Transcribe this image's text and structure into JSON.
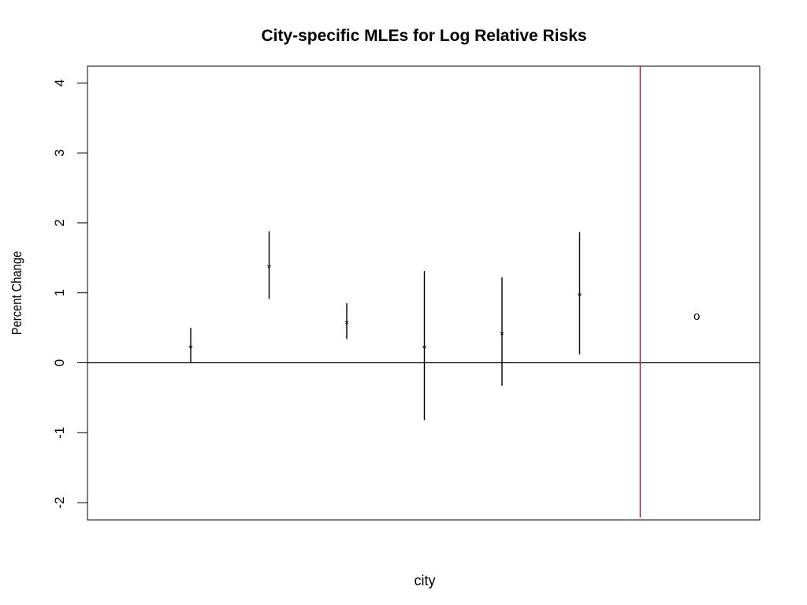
{
  "chart_data": {
    "type": "scatter",
    "title": "City-specific MLEs for Log Relative Risks",
    "xlabel": "city",
    "ylabel": "Percent Change",
    "ylim": [
      -2.25,
      4.25
    ],
    "xlim": [
      0.5,
      9.2
    ],
    "y_ticks": [
      -2,
      -1,
      0,
      1,
      2,
      3,
      4
    ],
    "grid": false,
    "estimates": [
      {
        "x": 1.85,
        "estimate": 0.22,
        "lower": 0.0,
        "upper": 0.5,
        "symbol": "*"
      },
      {
        "x": 2.86,
        "estimate": 1.37,
        "lower": 0.91,
        "upper": 1.88,
        "symbol": "*"
      },
      {
        "x": 3.86,
        "estimate": 0.57,
        "lower": 0.34,
        "upper": 0.85,
        "symbol": "*"
      },
      {
        "x": 4.86,
        "estimate": 0.22,
        "lower": -0.82,
        "upper": 1.31,
        "symbol": "*"
      },
      {
        "x": 5.86,
        "estimate": 0.41,
        "lower": -0.33,
        "upper": 1.22,
        "symbol": "*"
      },
      {
        "x": 6.86,
        "estimate": 0.97,
        "lower": 0.12,
        "upper": 1.87,
        "symbol": "*"
      }
    ],
    "pooled": {
      "x": 8.37,
      "estimate": 0.66,
      "symbol": "o"
    },
    "reference_hline": {
      "y": 0,
      "color": "#000000"
    },
    "reference_vline": {
      "x": 7.64,
      "color": "#c8105a"
    }
  }
}
